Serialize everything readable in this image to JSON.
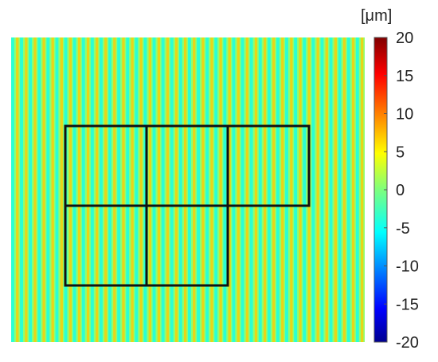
{
  "chart_data": {
    "type": "heatmap",
    "title": "",
    "xlabel": "",
    "ylabel": "",
    "colorbar": {
      "unit_label": "[μm]",
      "range": [
        -20,
        20
      ],
      "ticks": [
        20,
        15,
        10,
        5,
        0,
        -5,
        -10,
        -15,
        -20
      ],
      "tick_labels": [
        "20",
        "15",
        "10",
        "5",
        "0",
        "-5",
        "-10",
        "-15",
        "-20"
      ],
      "colormap": "jet"
    },
    "field": {
      "pattern": "vertical stripes",
      "stripe_count": 40,
      "stripe_low_value": -4,
      "stripe_high_value": 7
    },
    "overlay_grid": {
      "description": "five rectangular sub-regions",
      "rows": 2,
      "cells_per_row": [
        3,
        2
      ]
    },
    "colors": {
      "overlay_line": "#111111",
      "background": "#ffffff"
    }
  }
}
